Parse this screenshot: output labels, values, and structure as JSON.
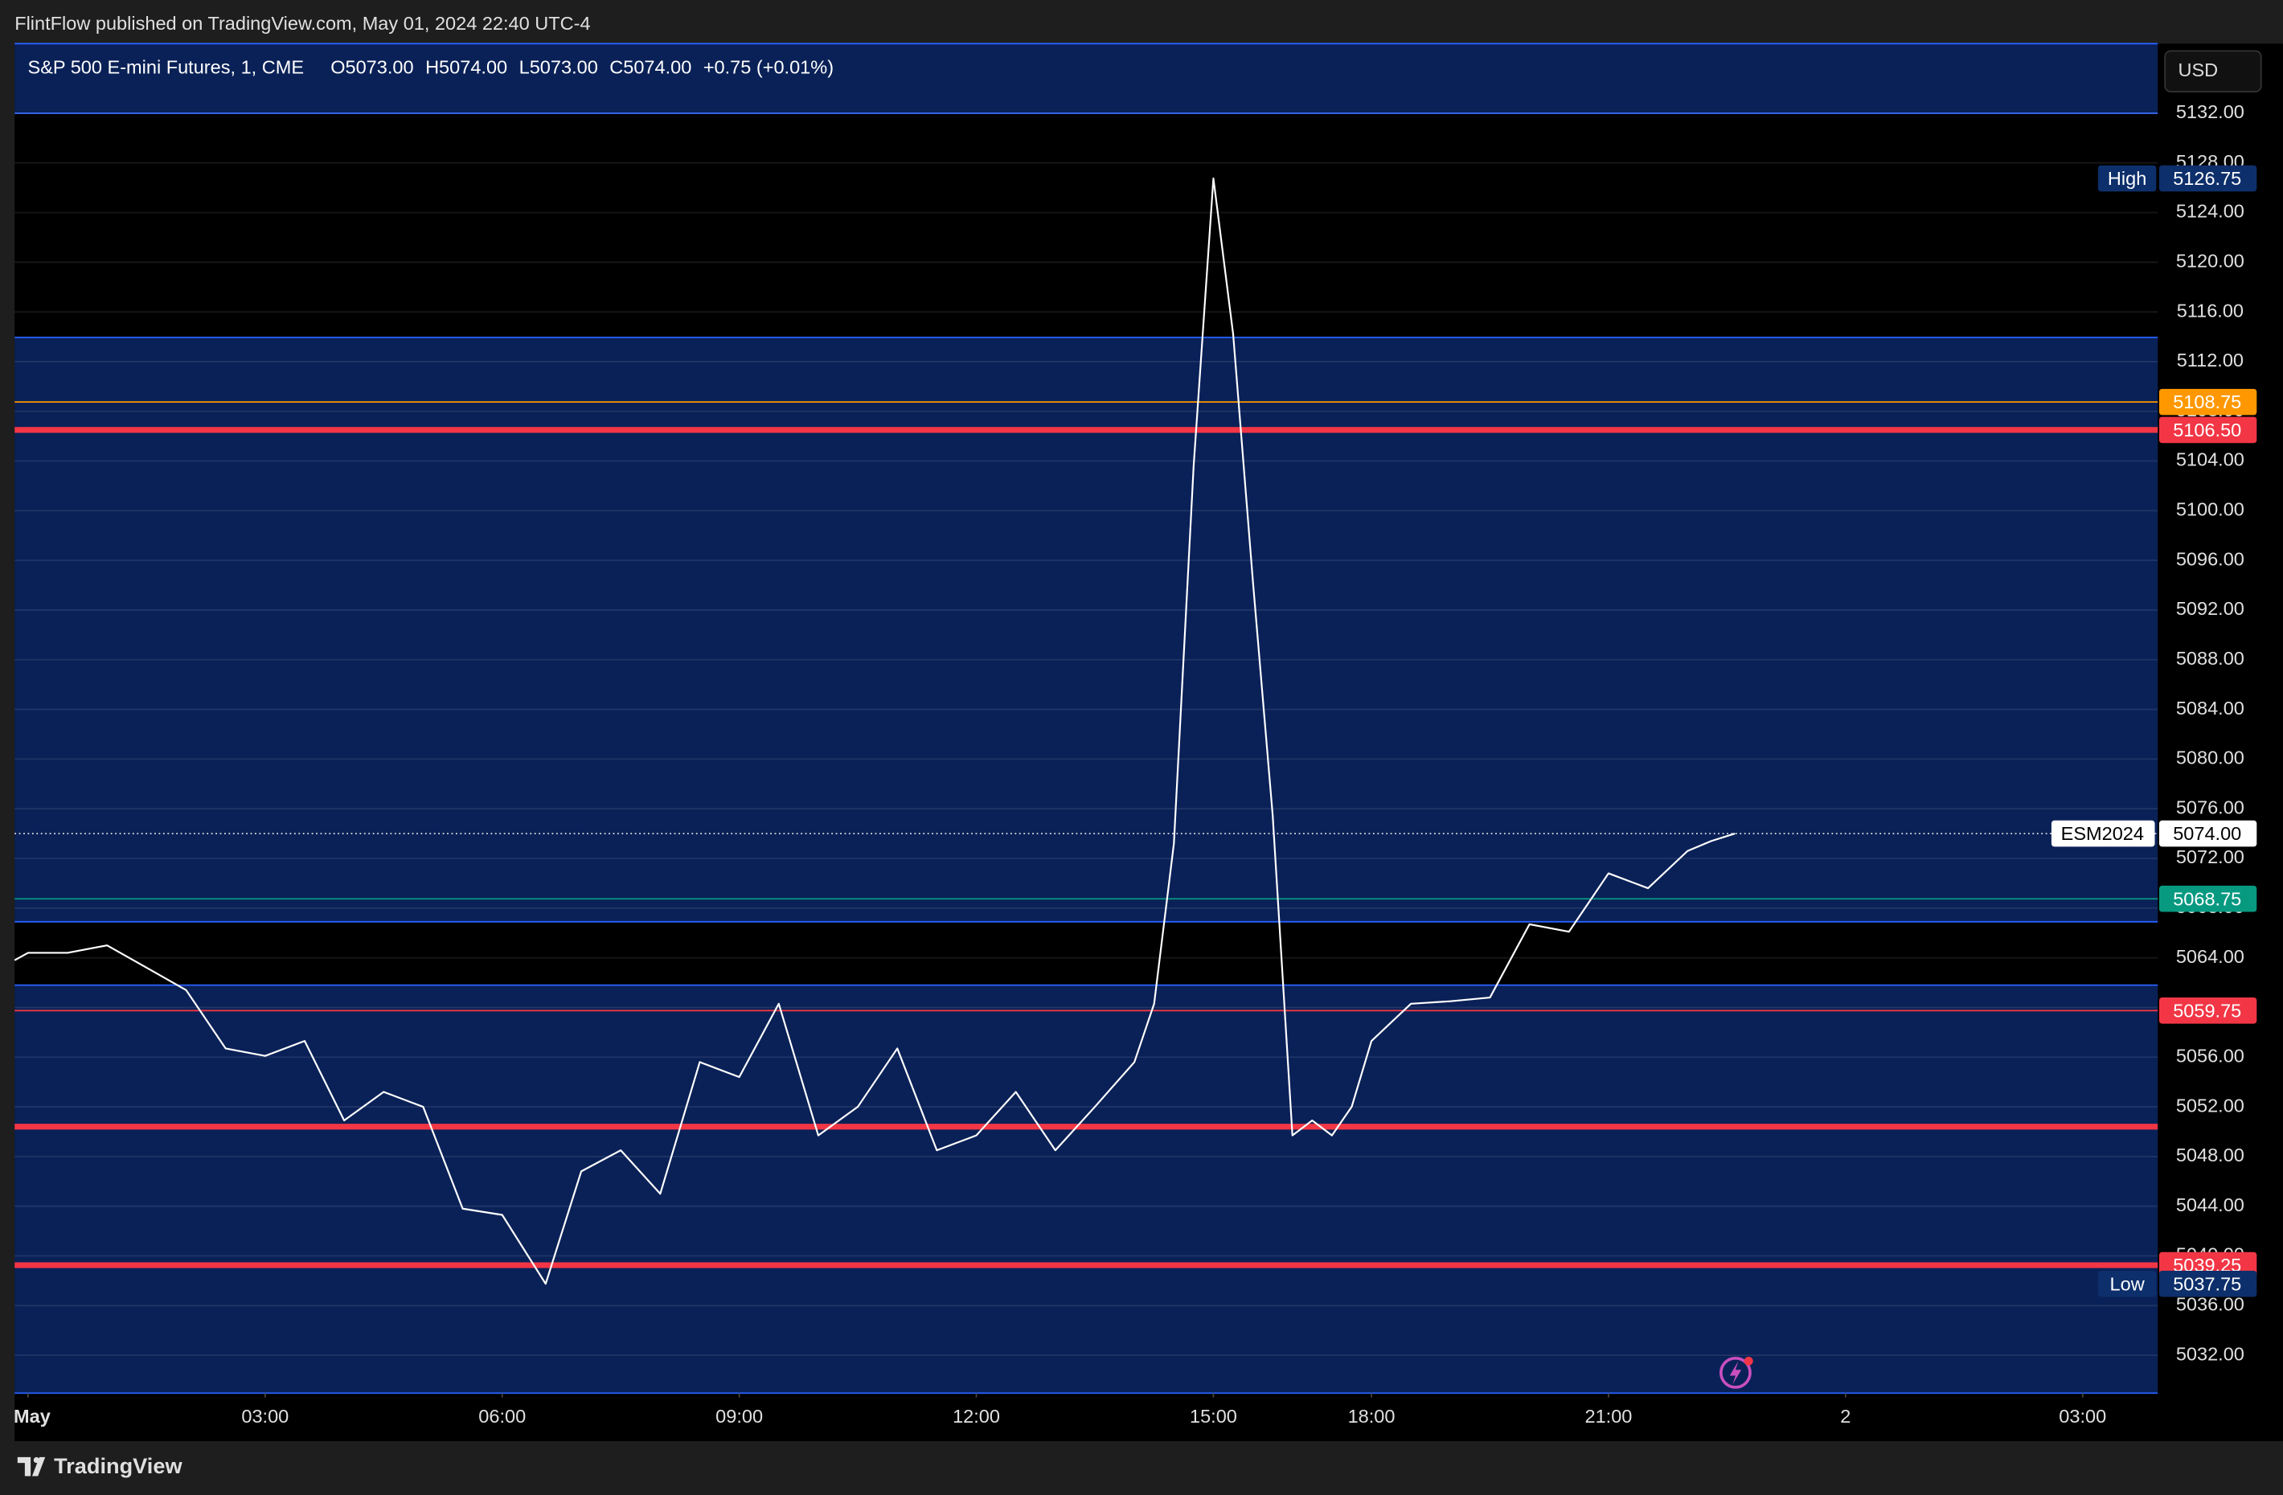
{
  "header": {
    "publisher": "FlintFlow published on TradingView.com, May 01, 2024 22:40 UTC-4",
    "brand": "TradingView"
  },
  "chart_data": {
    "type": "line",
    "title": "S&P 500 E-mini Futures, 1, CME",
    "legend_values": [
      "O5073.00",
      "H5074.00",
      "L5073.00",
      "C5074.00",
      "+0.75 (+0.01%)"
    ],
    "currency": "USD",
    "xlim": [
      -0.17,
      26.95
    ],
    "ylim": [
      5028.95,
      5137.6
    ],
    "xticks": [
      {
        "value": 0,
        "label": "May"
      },
      {
        "value": 3,
        "label": "03:00"
      },
      {
        "value": 6,
        "label": "06:00"
      },
      {
        "value": 9,
        "label": "09:00"
      },
      {
        "value": 12,
        "label": "12:00"
      },
      {
        "value": 15,
        "label": "15:00"
      },
      {
        "value": 17,
        "label": "18:00"
      },
      {
        "value": 20,
        "label": "21:00"
      },
      {
        "value": 23,
        "label": "2"
      },
      {
        "value": 26,
        "label": "03:00"
      }
    ],
    "yticks": [
      {
        "value": 5032,
        "label": "5032.00"
      },
      {
        "value": 5036,
        "label": "5036.00"
      },
      {
        "value": 5040,
        "label": "5040.00"
      },
      {
        "value": 5044,
        "label": "5044.00"
      },
      {
        "value": 5048,
        "label": "5048.00"
      },
      {
        "value": 5052,
        "label": "5052.00"
      },
      {
        "value": 5056,
        "label": "5056.00"
      },
      {
        "value": 5060,
        "label": "5060.00"
      },
      {
        "value": 5064,
        "label": "5064.00"
      },
      {
        "value": 5068,
        "label": "5068.00"
      },
      {
        "value": 5072,
        "label": "5072.00"
      },
      {
        "value": 5076,
        "label": "5076.00"
      },
      {
        "value": 5080,
        "label": "5080.00"
      },
      {
        "value": 5084,
        "label": "5084.00"
      },
      {
        "value": 5088,
        "label": "5088.00"
      },
      {
        "value": 5092,
        "label": "5092.00"
      },
      {
        "value": 5096,
        "label": "5096.00"
      },
      {
        "value": 5100,
        "label": "5100.00"
      },
      {
        "value": 5104,
        "label": "5104.00"
      },
      {
        "value": 5108,
        "label": "5108.00"
      },
      {
        "value": 5112,
        "label": "5112.00"
      },
      {
        "value": 5116,
        "label": "5116.00"
      },
      {
        "value": 5120,
        "label": "5120.00"
      },
      {
        "value": 5124,
        "label": "5124.00"
      },
      {
        "value": 5128,
        "label": "5128.00"
      },
      {
        "value": 5132,
        "label": "5132.00"
      }
    ],
    "grid": true,
    "zones": [
      [
        5132,
        5137.6
      ],
      [
        5066.9,
        5113.95
      ],
      [
        5028.95,
        5061.8
      ]
    ],
    "zone_color": "#0a2157",
    "levels": [
      {
        "value": 5108.75,
        "label": "5108.75",
        "color": "#ff9800",
        "style": "thin"
      },
      {
        "value": 5106.5,
        "label": "5106.50",
        "color": "#f23645",
        "style": "thick"
      },
      {
        "value": 5068.75,
        "label": "5068.75",
        "color": "#089981",
        "style": "thin"
      },
      {
        "value": 5059.75,
        "label": "5059.75",
        "color": "#f23645",
        "style": "thin"
      },
      {
        "value": 5050.4,
        "color": "#f23645",
        "style": "thick"
      },
      {
        "value": 5039.25,
        "label": "5039.25",
        "color": "#f23645",
        "style": "thick"
      }
    ],
    "last_price": {
      "name": "ESM2024",
      "value": 5074,
      "label": "5074.00"
    },
    "extremes": [
      {
        "name": "High",
        "value": 5126.75,
        "label": "5126.75"
      },
      {
        "name": "Low",
        "value": 5037.75,
        "label": "5037.75"
      }
    ],
    "series": [
      {
        "name": "ESM2024",
        "color": "#ffffff",
        "x": [
          -0.17,
          0,
          0.5,
          1,
          1.5,
          2,
          2.5,
          3,
          3.5,
          4,
          4.5,
          5,
          5.5,
          6,
          6.55,
          7,
          7.5,
          8,
          8.5,
          9,
          9.5,
          10,
          10.5,
          11,
          11.5,
          12,
          12.5,
          13,
          13.5,
          14,
          14.25,
          14.5,
          14.75,
          15,
          15.25,
          15.5,
          15.75,
          16,
          16.25,
          16.5,
          16.75,
          17,
          17.5,
          18,
          18.5,
          19,
          19.5,
          20,
          20.5,
          21,
          21.3,
          21.6
        ],
        "values": [
          5063.8,
          5064.4,
          5064.4,
          5065,
          5063.2,
          5061.4,
          5056.7,
          5056.1,
          5057.3,
          5050.9,
          5053.2,
          5052,
          5043.8,
          5043.3,
          5037.75,
          5046.8,
          5048.5,
          5045,
          5055.6,
          5054.4,
          5060.3,
          5049.7,
          5052,
          5056.7,
          5048.5,
          5049.7,
          5053.2,
          5048.5,
          5052,
          5055.6,
          5060.3,
          5073.2,
          5103.6,
          5126.75,
          5114.2,
          5094.3,
          5075.5,
          5049.7,
          5050.9,
          5049.7,
          5052,
          5057.3,
          5060.3,
          5060.5,
          5060.8,
          5066.7,
          5066.1,
          5070.8,
          5069.6,
          5072.6,
          5073.4,
          5074
        ]
      }
    ]
  }
}
